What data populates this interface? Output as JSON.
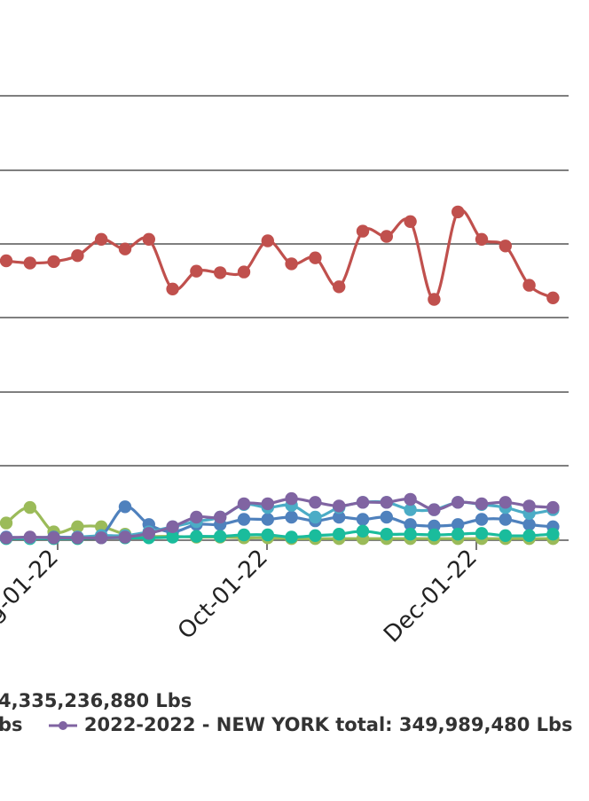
{
  "chart_data": {
    "type": "line",
    "title": "",
    "xlabel": "",
    "ylabel": "",
    "x_tick_labels": [
      "g-01-22",
      "Oct-01-22",
      "Dec-01-22"
    ],
    "grid": true,
    "legend_placement": "bottom",
    "series": [
      {
        "name_fragment": "4,335,236,880 Lbs",
        "color": "#c0504d",
        "values": [
          0.376,
          0.373,
          0.375,
          0.383,
          0.405,
          0.392,
          0.405,
          0.338,
          0.362,
          0.36,
          0.361,
          0.403,
          0.372,
          0.38,
          0.341,
          0.416,
          0.409,
          0.429,
          0.324,
          0.442,
          0.405,
          0.396,
          0.343,
          0.326
        ]
      },
      {
        "name_fragment": "bs",
        "color": "#9bbb59",
        "values": [
          0.022,
          0.043,
          0.01,
          0.017,
          0.017,
          0.007,
          0.004,
          0.004,
          0.003,
          0.003,
          0.002,
          0.002,
          0.001,
          0.001,
          0.001,
          0.001,
          0.001,
          0.001,
          0.001,
          0.001,
          0.001,
          0.001,
          0.001,
          0.001
        ]
      },
      {
        "name": "2022-2022 - NEW YORK total: 349,989,480 Lbs",
        "color": "#8064a2",
        "values": [
          0.002,
          0.003,
          0.002,
          0.002,
          0.002,
          0.003,
          0.008,
          0.017,
          0.03,
          0.03,
          0.048,
          0.048,
          0.055,
          0.05,
          0.045,
          0.05,
          0.05,
          0.054,
          0.04,
          0.05,
          0.048,
          0.05,
          0.045,
          0.043
        ]
      },
      {
        "name": "",
        "color": "#4f81bd",
        "values": [
          0.003,
          0.002,
          0.003,
          0.003,
          0.005,
          0.044,
          0.02,
          0.01,
          0.02,
          0.02,
          0.027,
          0.027,
          0.03,
          0.025,
          0.03,
          0.027,
          0.03,
          0.02,
          0.018,
          0.02,
          0.027,
          0.027,
          0.02,
          0.017
        ]
      },
      {
        "name": "",
        "color": "#4bacc6",
        "values": [
          0.002,
          0.002,
          0.002,
          0.003,
          0.005,
          0.005,
          0.01,
          0.017,
          0.024,
          0.03,
          0.047,
          0.043,
          0.046,
          0.03,
          0.043,
          0.05,
          0.05,
          0.04,
          0.04,
          0.05,
          0.047,
          0.043,
          0.035,
          0.04
        ]
      },
      {
        "name": "",
        "color": "#1abc9c",
        "values": [
          0.001,
          0.001,
          0.001,
          0.001,
          0.002,
          0.002,
          0.002,
          0.003,
          0.004,
          0.004,
          0.006,
          0.006,
          0.003,
          0.005,
          0.007,
          0.011,
          0.007,
          0.007,
          0.006,
          0.007,
          0.008,
          0.005,
          0.005,
          0.007
        ]
      }
    ]
  },
  "legend": {
    "row1_text": "4,335,236,880 Lbs",
    "row2_prev_text": "bs",
    "row2_item_text": "2022-2022 - NEW YORK total: 349,989,480 Lbs",
    "row2_item_color": "#8064a2"
  }
}
